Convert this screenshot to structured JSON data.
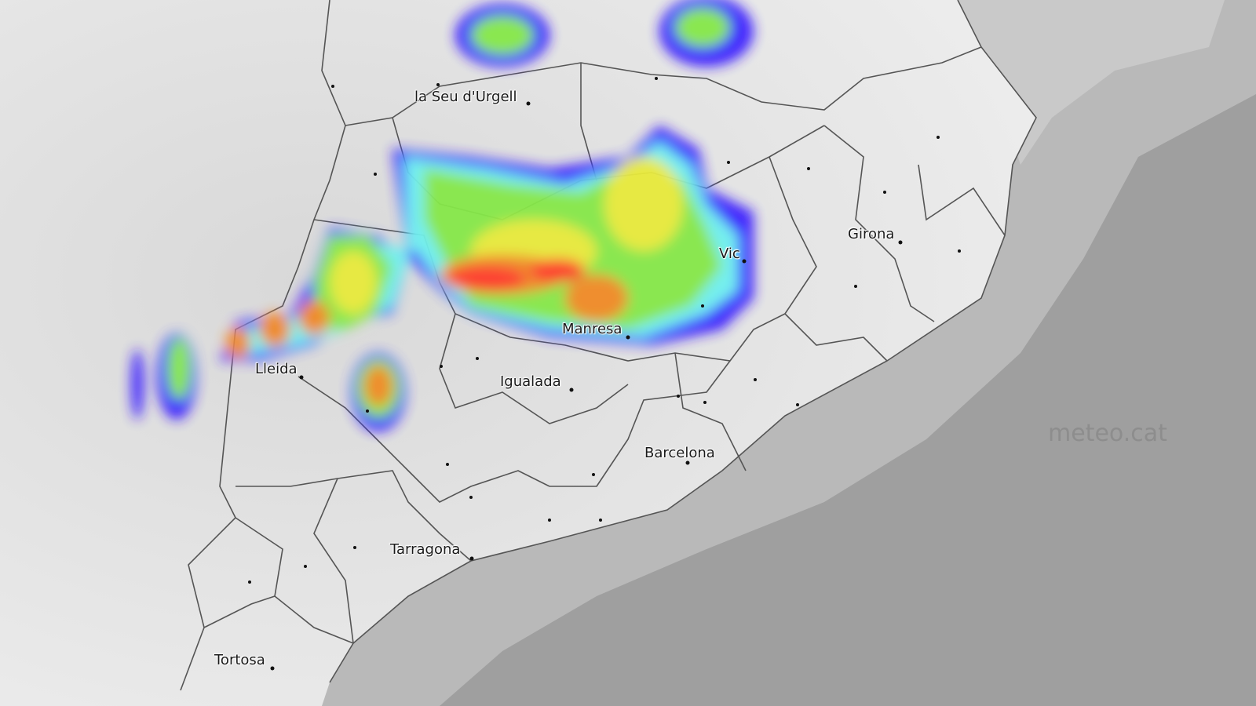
{
  "map": {
    "watermark": "meteo.cat",
    "colors": {
      "land": "#e6e6e6",
      "sea": "#9e9e9e",
      "border": "#555555",
      "radar_low": "#3b1cff",
      "radar_mid": "#7cf25a",
      "radar_high": "#ff3a2a"
    },
    "cities": [
      {
        "name": "la Seu d'Urgell"
      },
      {
        "name": "Girona"
      },
      {
        "name": "Vic"
      },
      {
        "name": "Manresa"
      },
      {
        "name": "Lleida"
      },
      {
        "name": "Igualada"
      },
      {
        "name": "Barcelona"
      },
      {
        "name": "Tarragona"
      },
      {
        "name": "Tortosa"
      }
    ]
  }
}
